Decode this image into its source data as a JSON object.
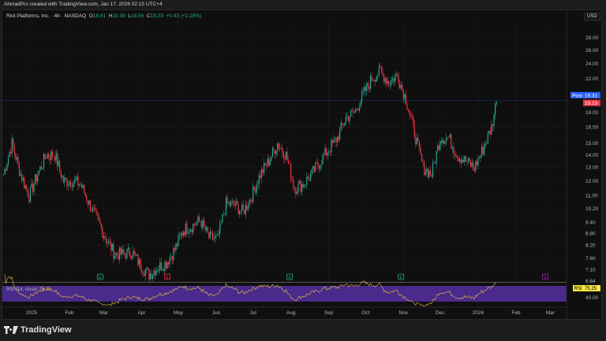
{
  "header": {
    "credit": "AhmadPro created with TradingView.com, Jan 17, 2026 02:15 UTC+4"
  },
  "legend": {
    "symbol": "Riot Platforms, Inc. · 4h · NASDAQ",
    "o_label": "O",
    "o": "18.81",
    "h_label": "H",
    "h": "19.39",
    "l_label": "L",
    "l": "18.56",
    "c_label": "C",
    "c": "19.23",
    "change": "+0.43 (+2.29%)"
  },
  "currency": "USD",
  "footer": {
    "brand": "TradingView"
  },
  "colors": {
    "up": "#22ab94",
    "down": "#f23645",
    "post": "#2962ff",
    "rsi_band": "#4a2a8a",
    "rsi_line": "#e8c547",
    "earnings": "#22ab94",
    "earnings_down": "#f23645",
    "dividend": "#9c27b0"
  },
  "chart_data": {
    "type": "candlestick",
    "y_scale": "log",
    "ylim": [
      6.64,
      28.0
    ],
    "y_ticks": [
      "28.00",
      "26.00",
      "24.00",
      "22.00",
      "18.00",
      "16.50",
      "15.00",
      "14.00",
      "13.00",
      "12.00",
      "11.00",
      "10.20",
      "9.40",
      "8.80",
      "8.20",
      "7.60",
      "7.10",
      "6.64"
    ],
    "x_ticks": [
      [
        "2025-01-01",
        "2025"
      ],
      [
        "2025-02-01",
        "Feb"
      ],
      [
        "2025-03-01",
        "Mar"
      ],
      [
        "2025-04-01",
        "Apr"
      ],
      [
        "2025-05-01",
        "May"
      ],
      [
        "2025-06-01",
        "Jun"
      ],
      [
        "2025-07-01",
        "Jul"
      ],
      [
        "2025-08-01",
        "Aug"
      ],
      [
        "2025-09-01",
        "Sep"
      ],
      [
        "2025-10-01",
        "Oct"
      ],
      [
        "2025-11-01",
        "Nov"
      ],
      [
        "2025-12-01",
        "Dec"
      ],
      [
        "2026-01-01",
        "2026"
      ],
      [
        "2026-02-01",
        "Feb"
      ],
      [
        "2026-03-01",
        "Mar"
      ]
    ],
    "weekly_close": [
      [
        "2024-12-09",
        12.5
      ],
      [
        "2024-12-16",
        15
      ],
      [
        "2024-12-23",
        12.5
      ],
      [
        "2024-12-30",
        11
      ],
      [
        "2025-01-06",
        12.5
      ],
      [
        "2025-01-13",
        14
      ],
      [
        "2025-01-20",
        14
      ],
      [
        "2025-01-27",
        12
      ],
      [
        "2025-02-03",
        12
      ],
      [
        "2025-02-10",
        11.8
      ],
      [
        "2025-02-17",
        10.5
      ],
      [
        "2025-02-24",
        9.5
      ],
      [
        "2025-03-03",
        8.5
      ],
      [
        "2025-03-10",
        7.8
      ],
      [
        "2025-03-17",
        7.8
      ],
      [
        "2025-03-24",
        7.9
      ],
      [
        "2025-03-31",
        7.3
      ],
      [
        "2025-04-07",
        6.9
      ],
      [
        "2025-04-14",
        7.2
      ],
      [
        "2025-04-21",
        7.4
      ],
      [
        "2025-04-28",
        8
      ],
      [
        "2025-05-05",
        9
      ],
      [
        "2025-05-12",
        9.2
      ],
      [
        "2025-05-19",
        9.5
      ],
      [
        "2025-05-26",
        8.6
      ],
      [
        "2025-06-02",
        8.5
      ],
      [
        "2025-06-09",
        10.5
      ],
      [
        "2025-06-16",
        10.4
      ],
      [
        "2025-06-23",
        10
      ],
      [
        "2025-06-30",
        11
      ],
      [
        "2025-07-07",
        12.5
      ],
      [
        "2025-07-14",
        13.5
      ],
      [
        "2025-07-21",
        15
      ],
      [
        "2025-07-28",
        14
      ],
      [
        "2025-08-04",
        11.5
      ],
      [
        "2025-08-11",
        11.8
      ],
      [
        "2025-08-18",
        12.5
      ],
      [
        "2025-08-25",
        13.5
      ],
      [
        "2025-09-01",
        14.5
      ],
      [
        "2025-09-08",
        15.5
      ],
      [
        "2025-09-15",
        17.5
      ],
      [
        "2025-09-22",
        18
      ],
      [
        "2025-09-29",
        20
      ],
      [
        "2025-10-06",
        22
      ],
      [
        "2025-10-13",
        23
      ],
      [
        "2025-10-20",
        21.5
      ],
      [
        "2025-10-27",
        22.5
      ],
      [
        "2025-11-03",
        19.5
      ],
      [
        "2025-11-10",
        16
      ],
      [
        "2025-11-17",
        13
      ],
      [
        "2025-11-24",
        12.5
      ],
      [
        "2025-12-01",
        15.5
      ],
      [
        "2025-12-08",
        15.5
      ],
      [
        "2025-12-15",
        14
      ],
      [
        "2025-12-22",
        13.5
      ],
      [
        "2025-12-29",
        13
      ],
      [
        "2026-01-05",
        14.5
      ],
      [
        "2026-01-12",
        16.5
      ],
      [
        "2026-01-16",
        19.23
      ]
    ],
    "price_labels": [
      {
        "label": "Post",
        "value": "19.31"
      },
      {
        "value": "19.23"
      }
    ],
    "events": [
      [
        "2025-02-26",
        "E",
        "earnings"
      ],
      [
        "2025-04-22",
        "E",
        "earnings_down"
      ],
      [
        "2025-07-31",
        "E",
        "earnings"
      ],
      [
        "2025-10-30",
        "E",
        "earnings"
      ],
      [
        "2026-02-25",
        "E",
        "dividend"
      ]
    ],
    "rsi": {
      "label": "RSI (14, close)",
      "value": "75.25",
      "tag": "RSI",
      "tick": "40.00"
    }
  }
}
